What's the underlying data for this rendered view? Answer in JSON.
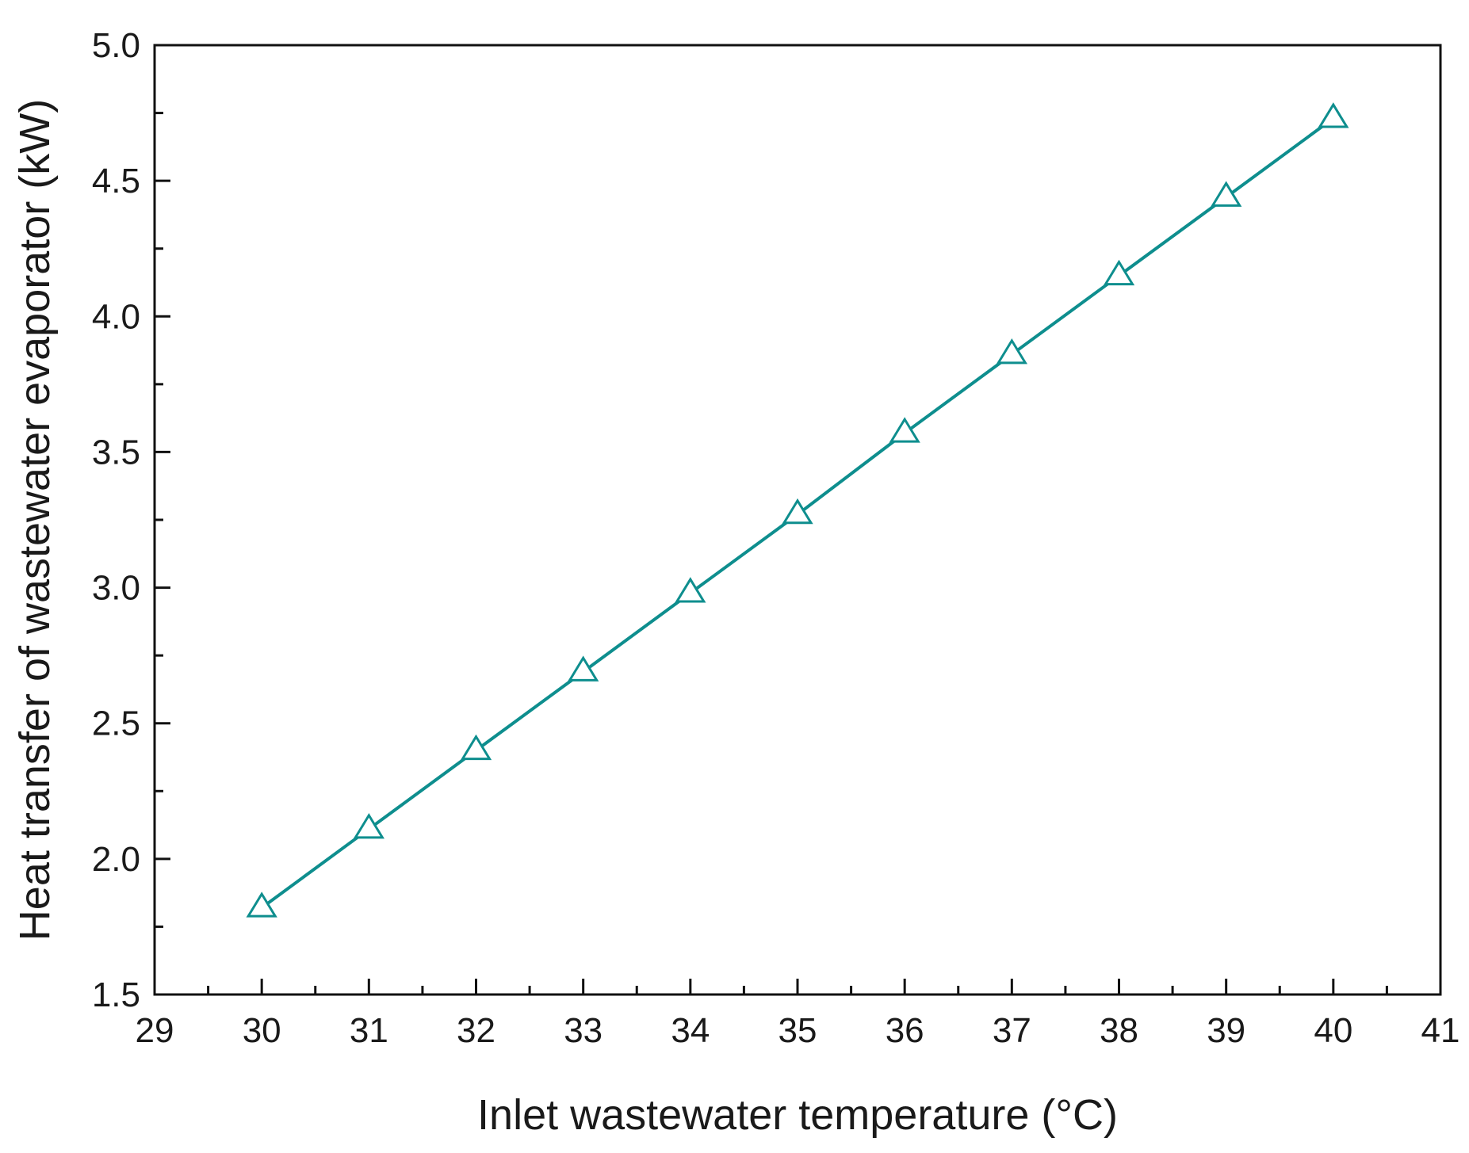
{
  "chart_data": {
    "type": "line",
    "title": "",
    "xlabel": "Inlet wastewater temperature (°C)",
    "ylabel": "Heat transfer of wastewater evaporator (kW)",
    "xlim": [
      29,
      41
    ],
    "ylim": [
      1.5,
      5.0
    ],
    "x_ticks": [
      "29",
      "30",
      "31",
      "32",
      "33",
      "34",
      "35",
      "36",
      "37",
      "38",
      "39",
      "40",
      "41"
    ],
    "y_ticks": [
      "1.5",
      "2.0",
      "2.5",
      "3.0",
      "3.5",
      "4.0",
      "4.5",
      "5.0"
    ],
    "grid": false,
    "legend": "none",
    "series": [
      {
        "color": "#0e8e8e",
        "marker": "open-triangle",
        "x": [
          30,
          31,
          32,
          33,
          34,
          35,
          36,
          37,
          38,
          39,
          40
        ],
        "y": [
          1.82,
          2.11,
          2.4,
          2.69,
          2.98,
          3.27,
          3.57,
          3.86,
          4.15,
          4.44,
          4.73
        ]
      }
    ]
  }
}
